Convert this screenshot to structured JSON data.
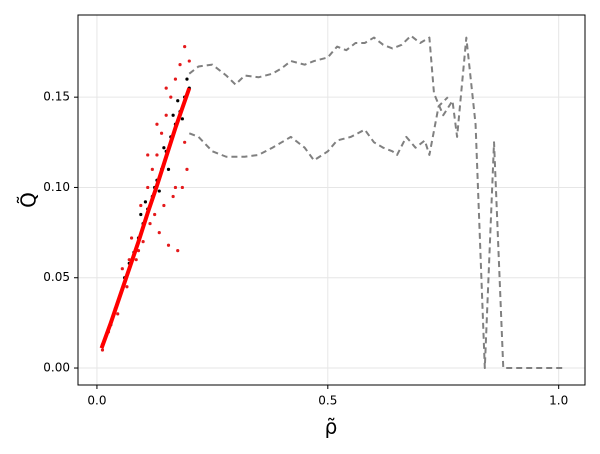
{
  "chart_data": {
    "type": "scatter",
    "xlabel": "ρ̃",
    "ylabel": "Q̃",
    "xlim": [
      -0.041,
      1.057
    ],
    "ylim": [
      -0.0094,
      0.1955
    ],
    "xticks": [
      {
        "value": 0,
        "label": "0.0"
      },
      {
        "value": 0.5,
        "label": "0.5"
      },
      {
        "value": 1,
        "label": "1.0"
      }
    ],
    "yticks": [
      {
        "value": 0,
        "label": "0.00"
      },
      {
        "value": 0.05,
        "label": "0.05"
      },
      {
        "value": 0.1,
        "label": "0.10"
      },
      {
        "value": 0.15,
        "label": "0.15"
      }
    ],
    "grid": true,
    "series": [
      {
        "mode": "markers",
        "color": "#000000",
        "x": [
          0.012,
          0.02,
          0.03,
          0.04,
          0.05,
          0.06,
          0.07,
          0.08,
          0.09,
          0.1,
          0.11,
          0.12,
          0.13,
          0.14,
          0.15,
          0.16,
          0.17,
          0.18,
          0.19,
          0.2,
          0.095,
          0.125,
          0.145,
          0.165,
          0.185,
          0.175,
          0.155,
          0.135,
          0.195,
          0.105
        ],
        "values": [
          0.013,
          0.018,
          0.024,
          0.033,
          0.04,
          0.05,
          0.058,
          0.064,
          0.072,
          0.08,
          0.088,
          0.095,
          0.104,
          0.11,
          0.12,
          0.128,
          0.135,
          0.142,
          0.15,
          0.155,
          0.085,
          0.1,
          0.122,
          0.14,
          0.138,
          0.148,
          0.11,
          0.098,
          0.16,
          0.092
        ]
      },
      {
        "mode": "markers",
        "color": "#e41a1c",
        "x": [
          0.012,
          0.025,
          0.045,
          0.055,
          0.065,
          0.075,
          0.085,
          0.095,
          0.1,
          0.11,
          0.115,
          0.12,
          0.125,
          0.13,
          0.135,
          0.14,
          0.145,
          0.15,
          0.155,
          0.16,
          0.165,
          0.17,
          0.175,
          0.18,
          0.185,
          0.19,
          0.195,
          0.2,
          0.17,
          0.19,
          0.15,
          0.13,
          0.11,
          0.09,
          0.07
        ],
        "values": [
          0.01,
          0.02,
          0.03,
          0.055,
          0.045,
          0.072,
          0.06,
          0.09,
          0.07,
          0.1,
          0.08,
          0.11,
          0.085,
          0.118,
          0.075,
          0.13,
          0.09,
          0.14,
          0.068,
          0.15,
          0.095,
          0.16,
          0.065,
          0.168,
          0.1,
          0.178,
          0.11,
          0.17,
          0.1,
          0.125,
          0.155,
          0.135,
          0.118,
          0.065,
          0.06
        ]
      },
      {
        "mode": "line",
        "color": "#ff0000",
        "x": [
          0.01,
          0.03,
          0.05,
          0.07,
          0.09,
          0.11,
          0.13,
          0.15,
          0.17,
          0.2
        ],
        "values": [
          0.011,
          0.025,
          0.04,
          0.055,
          0.07,
          0.086,
          0.101,
          0.117,
          0.133,
          0.155
        ]
      },
      {
        "mode": "dashed",
        "color": "#808080",
        "x": [
          0.2,
          0.22,
          0.25,
          0.28,
          0.3,
          0.32,
          0.35,
          0.38,
          0.4,
          0.42,
          0.45,
          0.47,
          0.5,
          0.52,
          0.54,
          0.56,
          0.58,
          0.6,
          0.62,
          0.64,
          0.66,
          0.68,
          0.7,
          0.72,
          0.73,
          0.75,
          0.77,
          0.78,
          0.8,
          0.82,
          0.84,
          0.86,
          0.88,
          0.9,
          0.95,
          1.01
        ],
        "values": [
          0.163,
          0.167,
          0.168,
          0.162,
          0.157,
          0.162,
          0.161,
          0.163,
          0.166,
          0.17,
          0.168,
          0.17,
          0.172,
          0.178,
          0.176,
          0.18,
          0.18,
          0.183,
          0.179,
          0.177,
          0.179,
          0.184,
          0.18,
          0.183,
          0.152,
          0.14,
          0.148,
          0.128,
          0.183,
          0.135,
          0.0,
          0.125,
          0.0,
          0.0,
          0.0,
          0.0
        ]
      },
      {
        "mode": "dashed",
        "color": "#808080",
        "x": [
          0.2,
          0.22,
          0.25,
          0.28,
          0.32,
          0.35,
          0.38,
          0.4,
          0.42,
          0.45,
          0.47,
          0.5,
          0.52,
          0.55,
          0.58,
          0.6,
          0.62,
          0.64,
          0.65,
          0.67,
          0.69,
          0.71,
          0.72,
          0.74,
          0.76
        ],
        "values": [
          0.13,
          0.128,
          0.12,
          0.117,
          0.117,
          0.118,
          0.122,
          0.125,
          0.128,
          0.122,
          0.115,
          0.12,
          0.126,
          0.128,
          0.132,
          0.125,
          0.122,
          0.12,
          0.118,
          0.128,
          0.122,
          0.126,
          0.118,
          0.145,
          0.15
        ]
      }
    ]
  }
}
